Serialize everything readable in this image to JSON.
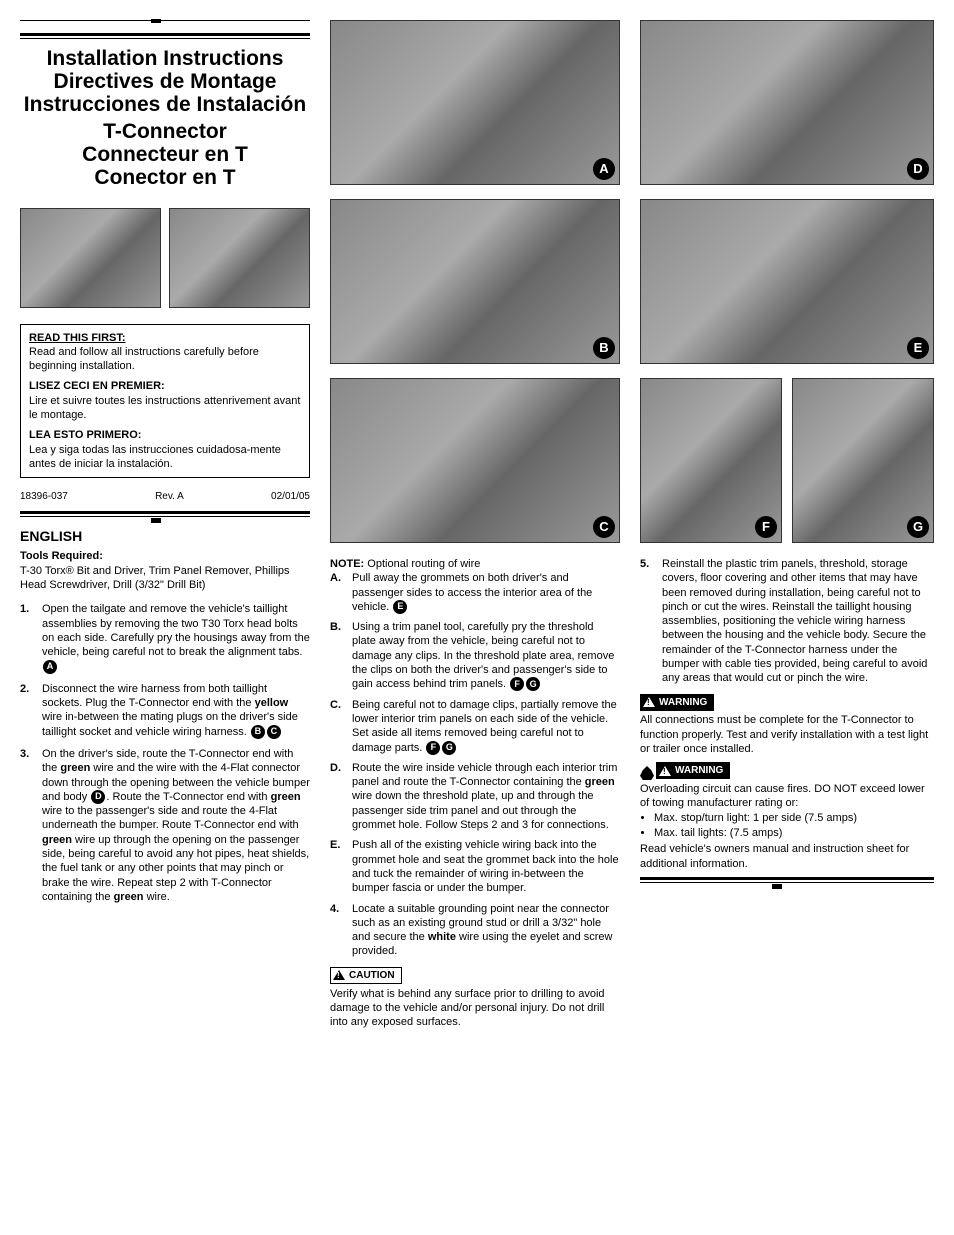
{
  "header": {
    "title_lines": [
      "Installation Instructions",
      "Directives de Montage",
      "Instrucciones de Instalación"
    ],
    "subtitle_lines": [
      "T-Connector",
      "Connecteur en T",
      "Conector en T"
    ]
  },
  "read_box": {
    "en_hd": "READ THIS FIRST:",
    "en": "Read and follow all instructions carefully before beginning installation.",
    "fr_hd": "LISEZ CECI EN PREMIER:",
    "fr": "Lire et suivre toutes les instructions attenrivement avant le montage.",
    "es_hd": "LEA ESTO PRIMERO:",
    "es": "Lea y siga todas las instrucciones cuidadosa-mente antes de iniciar la instalación."
  },
  "meta": {
    "partno": "18396-037",
    "rev": "Rev. A",
    "date": "02/01/05"
  },
  "english": {
    "heading": "ENGLISH",
    "tools_label": "Tools Required:",
    "tools": "T-30 Torx® Bit and Driver, Trim Panel Remover, Phillips Head Screwdriver, Drill (3/32\" Drill Bit)",
    "step1": "Open the tailgate and remove the vehicle's taillight assemblies by removing the two T30 Torx head bolts on each side. Carefully pry the housings away from the vehicle, being careful not to break the alignment tabs.",
    "step2a": "Disconnect the wire harness from both taillight sockets. Plug the T-Connector end with the ",
    "step2_yellow": "yellow",
    "step2b": " wire in-between the mating plugs on the driver's side taillight socket and vehicle wiring harness.",
    "step3a": "On the driver's side, route the T-Connector end with the ",
    "step3_green1": "green",
    "step3b": " wire and the wire with the 4-Flat connector down through the opening between the vehicle bumper and body ",
    "step3c": ". Route the T-Connector end with ",
    "step3_green2": "green",
    "step3d": " wire to the passenger's side and route the 4-Flat underneath the bumper. Route T-Connector end with ",
    "step3_green3": "green",
    "step3e": " wire up through the opening on the passenger side, being careful to avoid any hot pipes, heat shields, the fuel tank or any other points that may pinch or brake the wire. Repeat step 2 with T-Connector containing the ",
    "step3_green4": "green",
    "step3f": " wire."
  },
  "note": {
    "label": "NOTE:",
    "text": " Optional routing of wire",
    "A": "Pull away the grommets on both driver's and passenger sides to access the interior area of the vehicle.",
    "B": "Using a trim panel tool, carefully pry the threshold plate away from the vehicle, being careful not to damage any clips. In the threshold plate area, remove the clips on both the driver's and passenger's side to gain access behind trim panels.",
    "C": "Being careful not to damage clips, partially remove the lower interior trim panels on each side of the vehicle. Set aside all items removed being careful not to damage parts.",
    "D_a": "Route the wire inside vehicle through each interior trim panel and route the T-Connector containing the ",
    "D_green": "green",
    "D_b": " wire down the threshold plate, up and through the passenger side trim panel and out through the grommet hole. Follow Steps 2 and 3 for connections.",
    "E": "Push all of the existing vehicle wiring back into the grommet hole and seat the grommet back into the hole and tuck the remainder of wiring in-between the bumper fascia or under the bumper."
  },
  "step4a": "Locate a suitable grounding point near the connector such as an existing ground stud or drill a 3/32\" hole and secure the ",
  "step4_white": "white",
  "step4b": " wire using the eyelet and screw provided.",
  "caution": {
    "label": "CAUTION",
    "text": "Verify what is behind any surface prior to drilling to avoid damage to the vehicle and/or personal injury. Do not drill into any exposed surfaces."
  },
  "step5": "Reinstall the plastic trim panels, threshold, storage covers, floor covering and other items that may have been removed during installation, being careful not to pinch or cut the wires. Reinstall the taillight housing assemblies, positioning the vehicle wiring harness between the housing and the vehicle body. Secure the remainder of the T-Connector harness under the bumper with cable ties provided, being careful to avoid any areas that would cut or pinch the wire.",
  "warning1": {
    "label": "WARNING",
    "text": "All connections must be complete for the T-Connector to function properly. Test and verify installation with a test light or trailer once installed."
  },
  "warning2": {
    "label": "WARNING",
    "text1": "Overloading circuit can cause fires. DO NOT exceed lower of towing manufacturer rating or:",
    "b1": "Max. stop/turn light: 1 per side (7.5 amps)",
    "b2": "Max. tail lights: (7.5 amps)",
    "text2": "Read vehicle's owners manual and instruction sheet for additional information."
  },
  "photo_letters": {
    "A": "A",
    "B": "B",
    "C": "C",
    "D": "D",
    "E": "E",
    "F": "F",
    "G": "G"
  }
}
